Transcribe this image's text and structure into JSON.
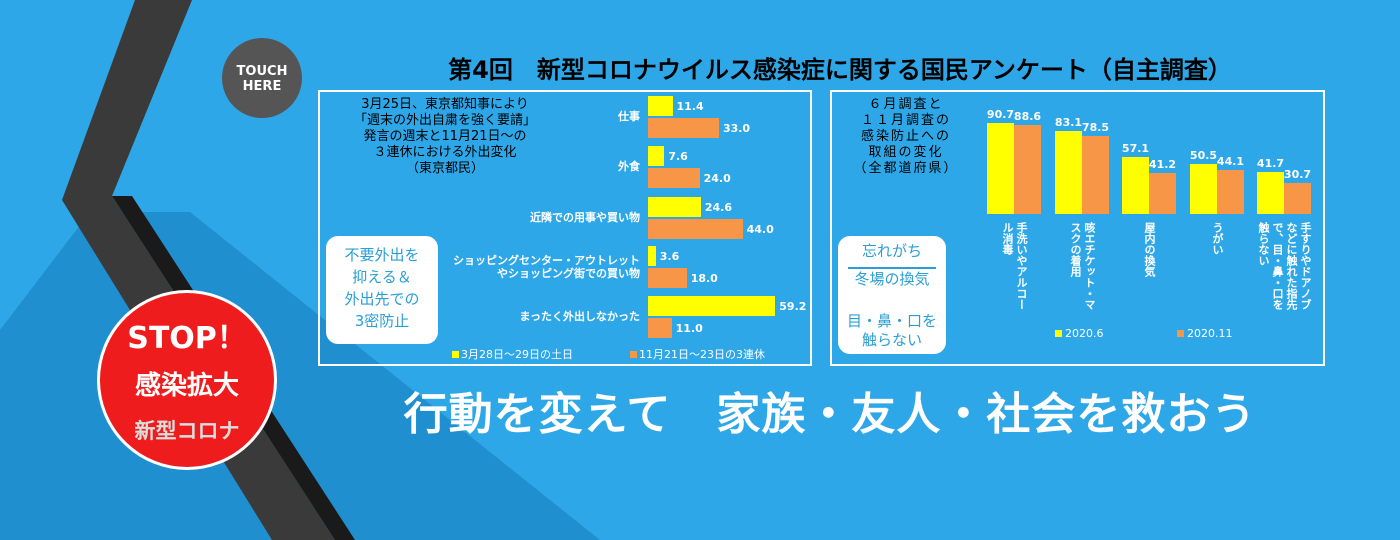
{
  "touch_button": [
    "TOUCH",
    "HERE"
  ],
  "header_title": "第4回　新型コロナウイルス感染症に関する国民アンケート（自主調査）",
  "stop_badge": [
    "STOP！",
    "感染拡大",
    "新型コロナ"
  ],
  "slogan": "行動を変えて　家族・友人・社会を救おう",
  "chart_data": [
    {
      "type": "bar",
      "orientation": "horizontal",
      "title_lines": [
        "3月25日、東京都知事により",
        "「週末の外出自粛を強く要請」",
        "発言の週末と11月21日～の",
        "３連休における外出変化",
        "（東京都民）"
      ],
      "callout_lines": [
        "不要外出を",
        "抑える＆",
        "外出先での",
        "3密防止"
      ],
      "categories": [
        "仕事",
        "外食",
        "近隣での用事や買い物",
        "ショッピングセンター・アウトレットやショッピング街での買い物",
        "まったく外出しなかった"
      ],
      "series": [
        {
          "name": "3月28日～29日の土日",
          "color": "#ffff00",
          "values": [
            11.4,
            7.6,
            24.6,
            3.6,
            59.2
          ]
        },
        {
          "name": "11月21日～23日の3連休",
          "color": "#f79646",
          "values": [
            33.0,
            24.0,
            44.0,
            18.0,
            11.0
          ],
          "value_labels": [
            "33.0",
            "24.0",
            "44.0",
            "18.0",
            "11.0"
          ]
        }
      ]
    },
    {
      "type": "bar",
      "orientation": "vertical",
      "title_lines": [
        "６月調査と",
        "１１月調査の",
        "感染防止への",
        "取組の変化",
        "（全都道府県）"
      ],
      "callout_lines": [
        "忘れがち",
        "冬場の換気",
        "目・鼻・口を",
        "触らない"
      ],
      "categories": [
        "手洗いやアルコール消毒",
        "咳エチケット・マスクの着用",
        "屋内の換気",
        "うがい",
        "手すりやドアノブなどに触れた指先で、目・鼻・口を触らない"
      ],
      "series": [
        {
          "name": "2020.6",
          "color": "#ffff00",
          "values": [
            90.7,
            83.1,
            57.1,
            50.5,
            41.7
          ]
        },
        {
          "name": "2020.11",
          "color": "#f79646",
          "values": [
            88.6,
            78.5,
            41.2,
            44.1,
            30.7
          ]
        }
      ]
    }
  ]
}
